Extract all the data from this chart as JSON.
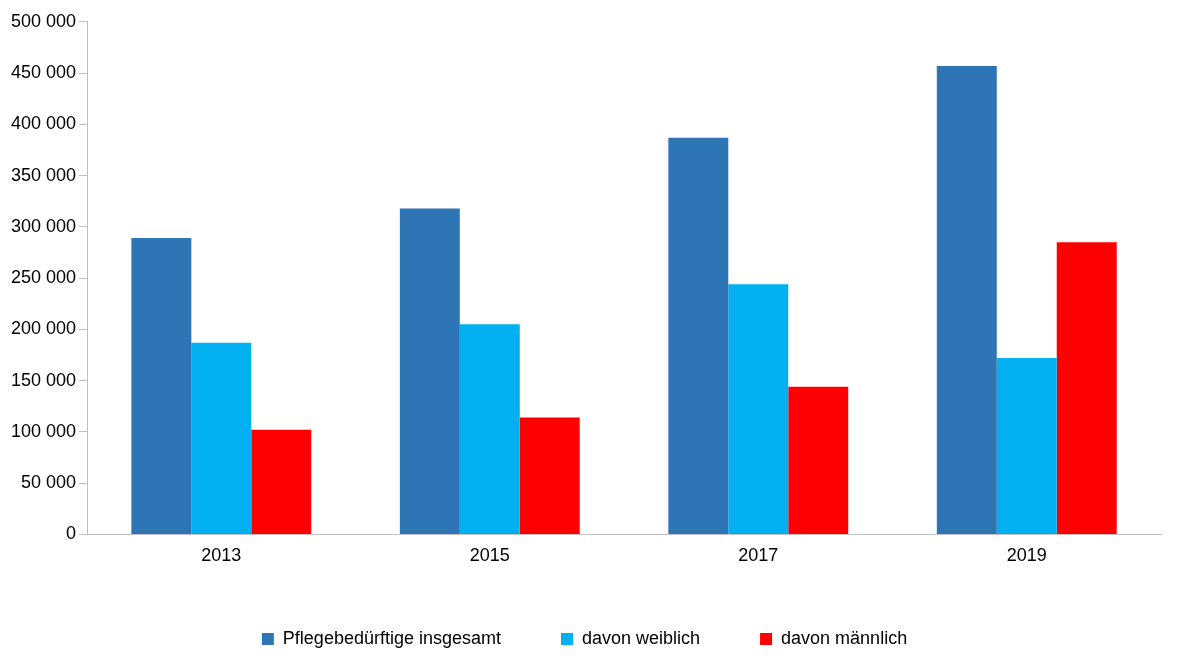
{
  "chart_data": {
    "type": "bar",
    "categories": [
      "2013",
      "2015",
      "2017",
      "2019"
    ],
    "series": [
      {
        "name": "Pflegebedürftige insgesamt",
        "color": "#2e75b6",
        "values": [
          289000,
          318000,
          387000,
          457000
        ]
      },
      {
        "name": "davon weiblich",
        "color": "#00b0f0",
        "values": [
          187000,
          205000,
          244000,
          172000
        ]
      },
      {
        "name": "davon männlich",
        "color": "#ff0000",
        "values": [
          102000,
          114000,
          144000,
          285000
        ]
      }
    ],
    "ylim": [
      0,
      500000
    ],
    "yticks": [
      0,
      {
        "value": 50000,
        "label": "50 000"
      },
      {
        "value": 100000,
        "label": "100 000"
      },
      {
        "value": 150000,
        "label": "150 000"
      },
      {
        "value": 200000,
        "label": "200 000"
      },
      {
        "value": 250000,
        "label": "250 000"
      },
      {
        "value": 300000,
        "label": "300 000"
      },
      {
        "value": 350000,
        "label": "350 000"
      },
      {
        "value": 400000,
        "label": "400 000"
      },
      {
        "value": 450000,
        "label": "450 000"
      },
      {
        "value": 500000,
        "label": "500 000"
      }
    ],
    "grid": false,
    "legend": "bottom"
  }
}
